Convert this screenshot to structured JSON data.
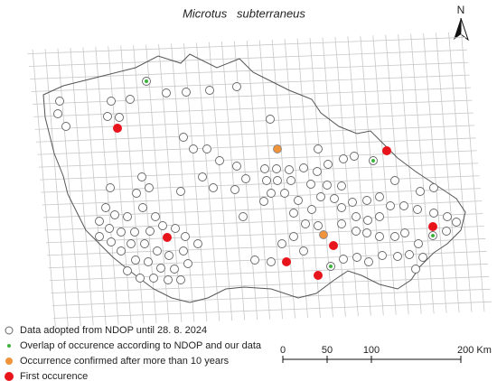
{
  "title": "Microtus   subterraneus",
  "north": "N",
  "legend": [
    "Data adopted from NDOP until 28. 8. 2024",
    "Overlap of occurence according to NDOP and our data",
    "Occurrence confirmed after more than 10 years",
    "First occurence"
  ],
  "scale_bar": [
    "0",
    "50",
    "100",
    "200 Km"
  ]
}
